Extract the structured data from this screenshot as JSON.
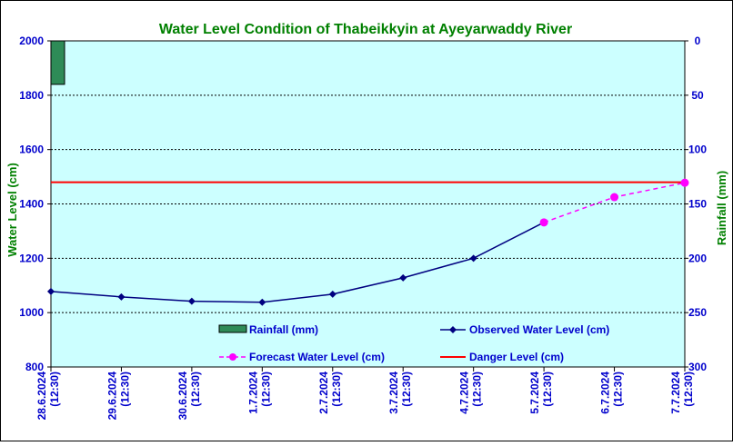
{
  "chart_data": {
    "type": "line",
    "title": "Water Level Condition of Thabeikkyin at Ayeyarwaddy River",
    "ylabel": "Water Level (cm)",
    "y2label": "Rainfall (mm)",
    "ylim": [
      800,
      2000
    ],
    "y2lim": [
      0,
      300
    ],
    "y2_inverted": true,
    "yticks": [
      800,
      1000,
      1200,
      1400,
      1600,
      1800,
      2000
    ],
    "y2ticks": [
      0,
      50,
      100,
      150,
      200,
      250,
      300
    ],
    "grid": true,
    "categories": [
      [
        "28.6.2024",
        "(12:30)"
      ],
      [
        "29.6.2024",
        "(12:30)"
      ],
      [
        "30.6.2024",
        "(12:30)"
      ],
      [
        "1.7.2024",
        "(12:30)"
      ],
      [
        "2.7.2024",
        "(12:30)"
      ],
      [
        "3.7.2024",
        "(12:30)"
      ],
      [
        "4.7.2024",
        "(12:30)"
      ],
      [
        "5.7.2024",
        "(12:30)"
      ],
      [
        "6.7.2024",
        "(12:30)"
      ],
      [
        "7.7.2024",
        "(12:30)"
      ]
    ],
    "series": [
      {
        "name": "Rainfall (mm)",
        "kind": "bar",
        "axis": "y2",
        "color": "#2e8b57",
        "values": [
          40,
          null,
          null,
          null,
          null,
          null,
          null,
          null,
          null,
          null
        ]
      },
      {
        "name": "Observed Water Level (cm)",
        "kind": "line",
        "axis": "y",
        "color": "#000080",
        "values": [
          1078,
          1058,
          1042,
          1038,
          1068,
          1128,
          1200,
          1332,
          null,
          null
        ]
      },
      {
        "name": "Forecast Water Level (cm)",
        "kind": "dashed-line",
        "axis": "y",
        "color": "#ff00ff",
        "values": [
          null,
          null,
          null,
          null,
          null,
          null,
          null,
          1332,
          1425,
          1478
        ]
      },
      {
        "name": "Danger Level (cm)",
        "kind": "hline",
        "axis": "y",
        "color": "#ff0000",
        "value": 1480
      }
    ],
    "legend_placement": "bottom-inside",
    "colors": {
      "plot_background": "#ccffff",
      "title": "#008000",
      "axis_text": "#0000cc",
      "axis_title": "#008000"
    }
  }
}
